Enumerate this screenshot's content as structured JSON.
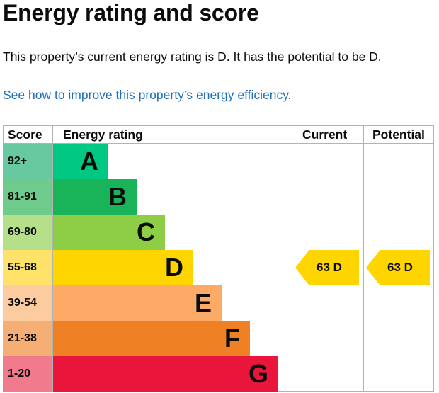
{
  "page": {
    "title": "Energy rating and score",
    "summary": "This property’s current energy rating is D. It has the potential to be D.",
    "improve_link": "See how to improve this property’s energy efficiency",
    "improve_suffix": "."
  },
  "table": {
    "headers": {
      "score": "Score",
      "energy_rating": "Energy rating",
      "current": "Current",
      "potential": "Potential"
    },
    "bands": [
      {
        "score": "92+",
        "letter": "A",
        "bar_color": "#00c781",
        "score_color": "#68c9a0"
      },
      {
        "score": "81-91",
        "letter": "B",
        "bar_color": "#19b459",
        "score_color": "#6fcb8b"
      },
      {
        "score": "69-80",
        "letter": "C",
        "bar_color": "#8dce46",
        "score_color": "#b6df89"
      },
      {
        "score": "55-68",
        "letter": "D",
        "bar_color": "#ffd500",
        "score_color": "#ffe26a"
      },
      {
        "score": "39-54",
        "letter": "E",
        "bar_color": "#fcaa65",
        "score_color": "#fdcba0"
      },
      {
        "score": "21-38",
        "letter": "F",
        "bar_color": "#ef8023",
        "score_color": "#f5ae73"
      },
      {
        "score": "1-20",
        "letter": "G",
        "bar_color": "#e9153b",
        "score_color": "#f17a8d"
      }
    ],
    "current": {
      "label": "63  D",
      "band": "D",
      "color": "#ffd500"
    },
    "potential": {
      "label": "63  D",
      "band": "D",
      "color": "#ffd500"
    }
  }
}
